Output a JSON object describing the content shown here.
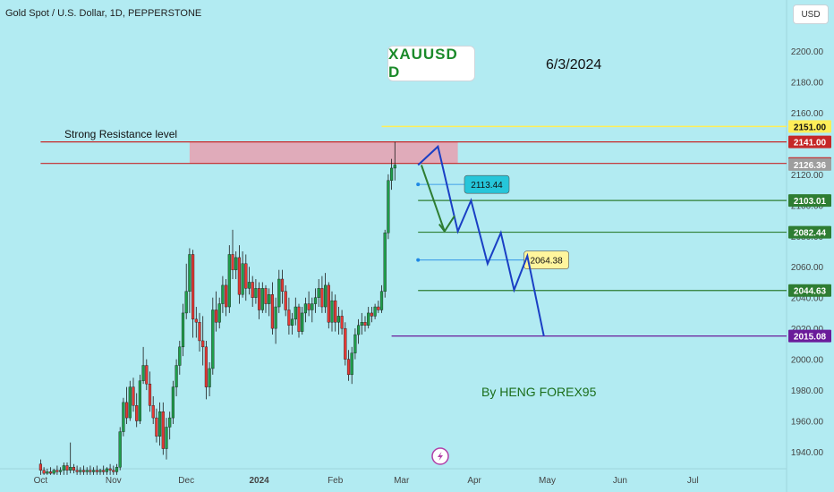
{
  "header": {
    "title": "Gold Spot / U.S. Dollar, 1D, PEPPERSTONE",
    "currency_button": "USD"
  },
  "annotations": {
    "symbol_box": "XAUUSD  D",
    "date_note": "6/3/2024",
    "resistance_label": "Strong Resistance level",
    "author": "By HENG FOREX95"
  },
  "colors": {
    "background": "#b2ebf2",
    "bull": "#1e9e4a",
    "bear": "#e53935",
    "resistance_zone": "#e8a0b0",
    "resistance_line": "#c62828",
    "support_line": "#2e7d32",
    "target_line": "#6a1b9a",
    "projection": "#1a3fc4",
    "arrow": "#2e7d32",
    "yellow_line": "#ffee58"
  },
  "chart_data": {
    "type": "candlestick",
    "instrument": "XAUUSD",
    "timeframe": "1D",
    "ylim": [
      1925,
      2230
    ],
    "y_ticks": [
      1940,
      1960,
      1980,
      2000,
      2020,
      2040,
      2060,
      2080,
      2100,
      2120,
      2140,
      2160,
      2180,
      2200
    ],
    "x_ticks": [
      "Oct",
      "Nov",
      "Dec",
      "2024",
      "Feb",
      "Mar",
      "Apr",
      "May",
      "Jun",
      "Jul"
    ],
    "x_tick_bars": [
      0,
      22,
      44,
      66,
      89,
      109,
      131,
      153,
      175,
      197
    ],
    "price_labels": [
      {
        "value": 2151.0,
        "text": "2151.00",
        "color": "#ffee58",
        "text_color": "#111"
      },
      {
        "value": 2141.0,
        "text": "2141.00",
        "color": "#c62828",
        "text_color": "#fff"
      },
      {
        "value": 2127.05,
        "text": "2127.05",
        "color": "#c62828",
        "text_color": "#fff"
      },
      {
        "value": 2126.36,
        "text": "2126.36",
        "color": "#9e9e9e",
        "text_color": "#fff"
      },
      {
        "value": 2103.01,
        "text": "2103.01",
        "color": "#2e7d32",
        "text_color": "#fff"
      },
      {
        "value": 2082.44,
        "text": "2082.44",
        "color": "#2e7d32",
        "text_color": "#fff"
      },
      {
        "value": 2044.63,
        "text": "2044.63",
        "color": "#2e7d32",
        "text_color": "#fff"
      },
      {
        "value": 2015.08,
        "text": "2015.08",
        "color": "#6a1b9a",
        "text_color": "#fff"
      }
    ],
    "callouts": [
      {
        "value": 2113.44,
        "text": "2113.44",
        "color": "#26c6da",
        "start_bar": 114,
        "label_bar": 128
      },
      {
        "value": 2064.38,
        "text": "2064.38",
        "color": "#fff59d",
        "start_bar": 114,
        "label_bar": 146
      }
    ],
    "resistance_zone": {
      "top": 2141.0,
      "bottom": 2127.05,
      "start_bar": 45,
      "end_bar": 126
    },
    "horizontal_lines": [
      {
        "value": 2151.0,
        "start_bar": 103,
        "color": "#ffee58"
      },
      {
        "value": 2141.0,
        "start_bar": 0,
        "color": "#c62828"
      },
      {
        "value": 2127.05,
        "start_bar": 0,
        "color": "#c62828"
      },
      {
        "value": 2103.01,
        "start_bar": 114,
        "color": "#2e7d32"
      },
      {
        "value": 2082.44,
        "start_bar": 114,
        "color": "#2e7d32"
      },
      {
        "value": 2044.63,
        "start_bar": 114,
        "color": "#2e7d32"
      },
      {
        "value": 2015.08,
        "start_bar": 106,
        "color": "#6a1b9a"
      }
    ],
    "projection_path": [
      [
        114,
        2126
      ],
      [
        120,
        2138
      ],
      [
        126,
        2083
      ],
      [
        130,
        2103
      ],
      [
        135,
        2062
      ],
      [
        139,
        2082
      ],
      [
        143,
        2045
      ],
      [
        147,
        2067
      ],
      [
        152,
        2015
      ]
    ],
    "arrow_path": [
      [
        115,
        2126
      ],
      [
        122,
        2083
      ],
      [
        125,
        2093
      ]
    ],
    "candles": [
      {
        "o": 1932,
        "h": 1935,
        "l": 1925,
        "c": 1928
      },
      {
        "o": 1928,
        "h": 1930,
        "l": 1925,
        "c": 1926
      },
      {
        "o": 1926,
        "h": 1929,
        "l": 1925,
        "c": 1927
      },
      {
        "o": 1927,
        "h": 1930,
        "l": 1925,
        "c": 1926
      },
      {
        "o": 1926,
        "h": 1929,
        "l": 1925,
        "c": 1928
      },
      {
        "o": 1928,
        "h": 1931,
        "l": 1925,
        "c": 1927
      },
      {
        "o": 1927,
        "h": 1930,
        "l": 1925,
        "c": 1928
      },
      {
        "o": 1928,
        "h": 1933,
        "l": 1925,
        "c": 1931
      },
      {
        "o": 1931,
        "h": 1933,
        "l": 1925,
        "c": 1928
      },
      {
        "o": 1928,
        "h": 1946,
        "l": 1926,
        "c": 1930
      },
      {
        "o": 1930,
        "h": 1932,
        "l": 1926,
        "c": 1928
      },
      {
        "o": 1928,
        "h": 1931,
        "l": 1925,
        "c": 1927
      },
      {
        "o": 1927,
        "h": 1930,
        "l": 1925,
        "c": 1928
      },
      {
        "o": 1928,
        "h": 1931,
        "l": 1925,
        "c": 1927
      },
      {
        "o": 1927,
        "h": 1930,
        "l": 1925,
        "c": 1928
      },
      {
        "o": 1928,
        "h": 1931,
        "l": 1925,
        "c": 1927
      },
      {
        "o": 1927,
        "h": 1930,
        "l": 1925,
        "c": 1928
      },
      {
        "o": 1928,
        "h": 1931,
        "l": 1925,
        "c": 1927
      },
      {
        "o": 1927,
        "h": 1929,
        "l": 1925,
        "c": 1928
      },
      {
        "o": 1928,
        "h": 1931,
        "l": 1925,
        "c": 1927
      },
      {
        "o": 1927,
        "h": 1930,
        "l": 1925,
        "c": 1929
      },
      {
        "o": 1929,
        "h": 1932,
        "l": 1925,
        "c": 1928
      },
      {
        "o": 1928,
        "h": 1931,
        "l": 1925,
        "c": 1927
      },
      {
        "o": 1927,
        "h": 1932,
        "l": 1925,
        "c": 1930
      },
      {
        "o": 1930,
        "h": 1956,
        "l": 1928,
        "c": 1953
      },
      {
        "o": 1953,
        "h": 1975,
        "l": 1950,
        "c": 1972
      },
      {
        "o": 1972,
        "h": 1982,
        "l": 1958,
        "c": 1962
      },
      {
        "o": 1962,
        "h": 1986,
        "l": 1960,
        "c": 1982
      },
      {
        "o": 1982,
        "h": 1988,
        "l": 1966,
        "c": 1970
      },
      {
        "o": 1970,
        "h": 1978,
        "l": 1956,
        "c": 1960
      },
      {
        "o": 1960,
        "h": 1990,
        "l": 1958,
        "c": 1986
      },
      {
        "o": 1986,
        "h": 2008,
        "l": 1984,
        "c": 1996
      },
      {
        "o": 1996,
        "h": 2000,
        "l": 1980,
        "c": 1984
      },
      {
        "o": 1984,
        "h": 1992,
        "l": 1966,
        "c": 1970
      },
      {
        "o": 1970,
        "h": 1976,
        "l": 1958,
        "c": 1962
      },
      {
        "o": 1962,
        "h": 1968,
        "l": 1946,
        "c": 1950
      },
      {
        "o": 1950,
        "h": 1972,
        "l": 1944,
        "c": 1966
      },
      {
        "o": 1966,
        "h": 1972,
        "l": 1938,
        "c": 1942
      },
      {
        "o": 1942,
        "h": 1962,
        "l": 1935,
        "c": 1956
      },
      {
        "o": 1956,
        "h": 1966,
        "l": 1948,
        "c": 1962
      },
      {
        "o": 1962,
        "h": 1986,
        "l": 1958,
        "c": 1982
      },
      {
        "o": 1982,
        "h": 2000,
        "l": 1976,
        "c": 1996
      },
      {
        "o": 1996,
        "h": 2012,
        "l": 1990,
        "c": 2008
      },
      {
        "o": 2008,
        "h": 2036,
        "l": 2002,
        "c": 2030
      },
      {
        "o": 2030,
        "h": 2062,
        "l": 2026,
        "c": 2044
      },
      {
        "o": 2044,
        "h": 2072,
        "l": 2030,
        "c": 2068
      },
      {
        "o": 2068,
        "h": 2071,
        "l": 2014,
        "c": 2026
      },
      {
        "o": 2026,
        "h": 2034,
        "l": 2014,
        "c": 2024
      },
      {
        "o": 2024,
        "h": 2030,
        "l": 2005,
        "c": 2012
      },
      {
        "o": 2012,
        "h": 2028,
        "l": 1996,
        "c": 2008
      },
      {
        "o": 2008,
        "h": 2012,
        "l": 1974,
        "c": 1982
      },
      {
        "o": 1982,
        "h": 1998,
        "l": 1976,
        "c": 1994
      },
      {
        "o": 1994,
        "h": 2040,
        "l": 1990,
        "c": 2032
      },
      {
        "o": 2032,
        "h": 2044,
        "l": 2018,
        "c": 2024
      },
      {
        "o": 2024,
        "h": 2040,
        "l": 2020,
        "c": 2036
      },
      {
        "o": 2036,
        "h": 2054,
        "l": 2030,
        "c": 2048
      },
      {
        "o": 2048,
        "h": 2052,
        "l": 2028,
        "c": 2034
      },
      {
        "o": 2034,
        "h": 2074,
        "l": 2030,
        "c": 2068
      },
      {
        "o": 2068,
        "h": 2084,
        "l": 2052,
        "c": 2058
      },
      {
        "o": 2058,
        "h": 2070,
        "l": 2052,
        "c": 2066
      },
      {
        "o": 2066,
        "h": 2074,
        "l": 2036,
        "c": 2042
      },
      {
        "o": 2042,
        "h": 2070,
        "l": 2040,
        "c": 2062
      },
      {
        "o": 2062,
        "h": 2068,
        "l": 2038,
        "c": 2046
      },
      {
        "o": 2046,
        "h": 2060,
        "l": 2042,
        "c": 2050
      },
      {
        "o": 2050,
        "h": 2054,
        "l": 2034,
        "c": 2040
      },
      {
        "o": 2040,
        "h": 2052,
        "l": 2036,
        "c": 2046
      },
      {
        "o": 2046,
        "h": 2050,
        "l": 2026,
        "c": 2032
      },
      {
        "o": 2032,
        "h": 2050,
        "l": 2030,
        "c": 2046
      },
      {
        "o": 2046,
        "h": 2048,
        "l": 2030,
        "c": 2036
      },
      {
        "o": 2036,
        "h": 2046,
        "l": 2028,
        "c": 2042
      },
      {
        "o": 2042,
        "h": 2050,
        "l": 2016,
        "c": 2020
      },
      {
        "o": 2020,
        "h": 2040,
        "l": 2010,
        "c": 2034
      },
      {
        "o": 2034,
        "h": 2058,
        "l": 2030,
        "c": 2052
      },
      {
        "o": 2052,
        "h": 2058,
        "l": 2036,
        "c": 2044
      },
      {
        "o": 2044,
        "h": 2048,
        "l": 2028,
        "c": 2032
      },
      {
        "o": 2032,
        "h": 2040,
        "l": 2016,
        "c": 2022
      },
      {
        "o": 2022,
        "h": 2030,
        "l": 2016,
        "c": 2026
      },
      {
        "o": 2026,
        "h": 2040,
        "l": 2022,
        "c": 2034
      },
      {
        "o": 2034,
        "h": 2036,
        "l": 2014,
        "c": 2018
      },
      {
        "o": 2018,
        "h": 2034,
        "l": 2016,
        "c": 2030
      },
      {
        "o": 2030,
        "h": 2040,
        "l": 2024,
        "c": 2036
      },
      {
        "o": 2036,
        "h": 2044,
        "l": 2028,
        "c": 2032
      },
      {
        "o": 2032,
        "h": 2040,
        "l": 2024,
        "c": 2036
      },
      {
        "o": 2036,
        "h": 2046,
        "l": 2030,
        "c": 2040
      },
      {
        "o": 2040,
        "h": 2052,
        "l": 2034,
        "c": 2046
      },
      {
        "o": 2046,
        "h": 2054,
        "l": 2030,
        "c": 2034
      },
      {
        "o": 2034,
        "h": 2056,
        "l": 2030,
        "c": 2048
      },
      {
        "o": 2048,
        "h": 2050,
        "l": 2020,
        "c": 2024
      },
      {
        "o": 2024,
        "h": 2044,
        "l": 2018,
        "c": 2038
      },
      {
        "o": 2038,
        "h": 2042,
        "l": 2018,
        "c": 2024
      },
      {
        "o": 2024,
        "h": 2034,
        "l": 2016,
        "c": 2028
      },
      {
        "o": 2028,
        "h": 2032,
        "l": 2016,
        "c": 2020
      },
      {
        "o": 2020,
        "h": 2024,
        "l": 1996,
        "c": 2000
      },
      {
        "o": 2000,
        "h": 2006,
        "l": 1986,
        "c": 1990
      },
      {
        "o": 1990,
        "h": 2008,
        "l": 1984,
        "c": 2004
      },
      {
        "o": 2004,
        "h": 2020,
        "l": 2000,
        "c": 2016
      },
      {
        "o": 2016,
        "h": 2026,
        "l": 2010,
        "c": 2022
      },
      {
        "o": 2022,
        "h": 2030,
        "l": 2016,
        "c": 2024
      },
      {
        "o": 2024,
        "h": 2028,
        "l": 2018,
        "c": 2022
      },
      {
        "o": 2022,
        "h": 2034,
        "l": 2020,
        "c": 2030
      },
      {
        "o": 2030,
        "h": 2034,
        "l": 2024,
        "c": 2028
      },
      {
        "o": 2028,
        "h": 2036,
        "l": 2026,
        "c": 2034
      },
      {
        "o": 2034,
        "h": 2038,
        "l": 2030,
        "c": 2032
      },
      {
        "o": 2032,
        "h": 2048,
        "l": 2030,
        "c": 2044
      },
      {
        "o": 2044,
        "h": 2084,
        "l": 2040,
        "c": 2082
      },
      {
        "o": 2082,
        "h": 2120,
        "l": 2078,
        "c": 2116
      },
      {
        "o": 2116,
        "h": 2130,
        "l": 2110,
        "c": 2124
      },
      {
        "o": 2124,
        "h": 2141,
        "l": 2116,
        "c": 2126
      }
    ]
  }
}
